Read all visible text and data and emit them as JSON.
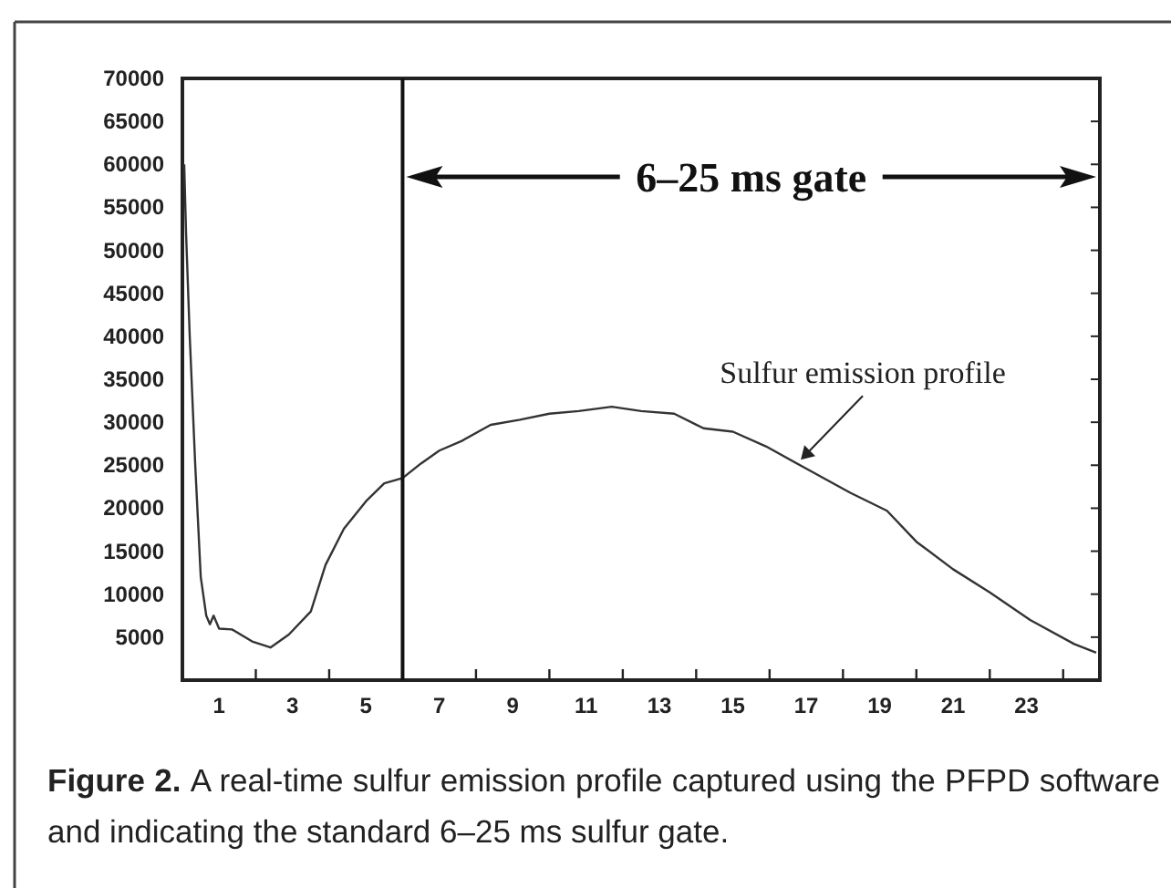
{
  "chart_data": {
    "type": "line",
    "annotations": [
      "6–25 ms gate",
      {
        "text": "Sulfur emission profile",
        "x": 16.8,
        "y": 25000
      },
      "Figure 2.",
      "A real-time sulfur emission profile captured using the PFPD software and indicating the standard 6–25 ms sulfur gate."
    ],
    "x": [
      0.05,
      0.1,
      0.2,
      0.35,
      0.5,
      0.65,
      0.75,
      0.85,
      1.0,
      1.35,
      1.9,
      2.4,
      2.9,
      3.5,
      3.9,
      4.4,
      5.0,
      5.5,
      6.0,
      6.5,
      7.0,
      7.6,
      8.4,
      9.2,
      10.0,
      10.8,
      11.7,
      12.5,
      13.4,
      14.2,
      15.0,
      15.9,
      17.0,
      18.2,
      19.2,
      20.0,
      21.0,
      22.0,
      23.1,
      24.3,
      24.9
    ],
    "series": [
      {
        "color": "#333333",
        "values": [
          60000,
          52000,
          40000,
          25000,
          12000,
          7500,
          6500,
          7500,
          6000,
          5900,
          4500,
          3800,
          5300,
          8000,
          13400,
          17600,
          20800,
          22900,
          23500,
          25200,
          26700,
          27800,
          29700,
          30300,
          31000,
          31300,
          31800,
          31300,
          31000,
          29300,
          28900,
          27200,
          24600,
          21800,
          19700,
          16100,
          12900,
          10200,
          7000,
          4200,
          3200
        ]
      }
    ],
    "xlim": [
      0,
      25
    ],
    "xticks": [
      {
        "value": 2,
        "label": null
      },
      {
        "value": 4,
        "label": null
      },
      {
        "value": 6,
        "label": null
      },
      {
        "value": 8,
        "label": null
      },
      {
        "value": 10,
        "label": null
      },
      {
        "value": 12,
        "label": null
      },
      {
        "value": 14,
        "label": null
      },
      {
        "value": 16,
        "label": null
      },
      {
        "value": 18,
        "label": null
      },
      {
        "value": 20,
        "label": null
      },
      {
        "value": 22,
        "label": null
      },
      {
        "value": 24,
        "label": null
      },
      1,
      3,
      5,
      7,
      9,
      11,
      13,
      15,
      17,
      19,
      21,
      23
    ],
    "ylim": [
      0,
      70000
    ],
    "yticks": [
      5000,
      10000,
      15000,
      20000,
      25000,
      30000,
      35000,
      40000,
      45000,
      50000,
      55000,
      60000,
      65000,
      70000
    ],
    "ref_lines": [
      {
        "axis": "x",
        "value": 6
      }
    ],
    "grid": false,
    "line_style": "solid"
  }
}
